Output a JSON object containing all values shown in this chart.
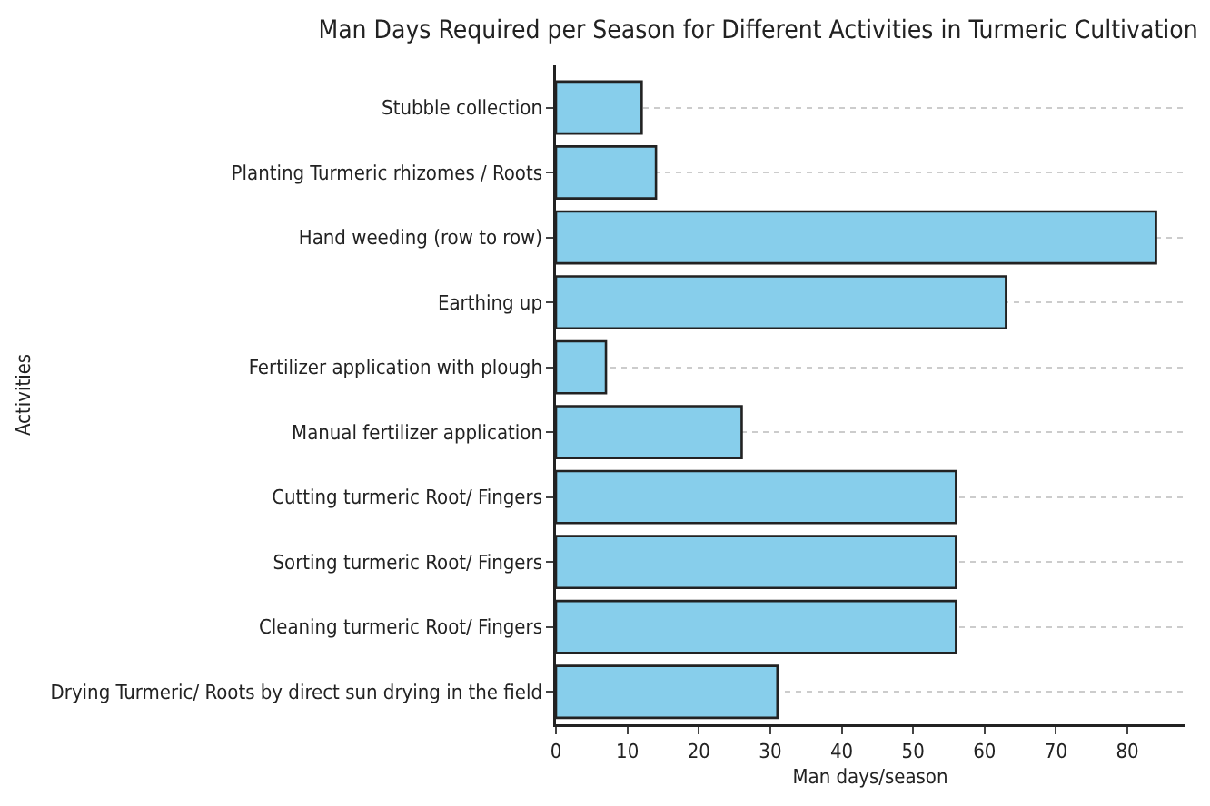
{
  "chart_data": {
    "type": "bar",
    "orientation": "horizontal",
    "title": "Man Days Required per Season for Different Activities in Turmeric Cultivation",
    "xlabel": "Man days/season",
    "ylabel": "Activities",
    "categories": [
      "Stubble collection",
      "Planting Turmeric rhizomes / Roots",
      "Hand weeding (row to row)",
      "Earthing up",
      "Fertilizer application with plough",
      "Manual fertilizer application",
      "Cutting turmeric Root/ Fingers",
      "Sorting turmeric Root/ Fingers",
      "Cleaning turmeric Root/ Fingers",
      "Drying Turmeric/ Roots by direct sun drying in the field"
    ],
    "values": [
      12,
      14,
      84,
      63,
      7,
      26,
      56,
      56,
      56,
      31
    ],
    "color": "#87ceeb",
    "xlim": [
      0,
      88
    ],
    "xticks": [
      0,
      10,
      20,
      30,
      40,
      50,
      60,
      70,
      80
    ],
    "grid": "y"
  }
}
